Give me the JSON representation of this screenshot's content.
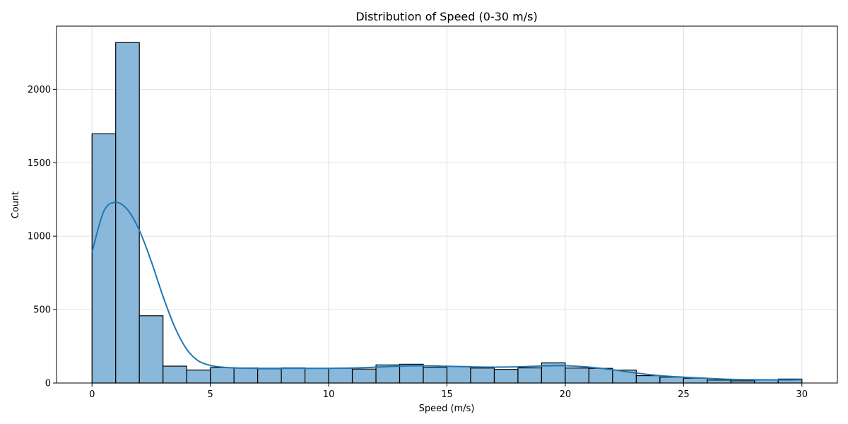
{
  "chart_data": {
    "type": "bar",
    "subtype": "histogram-with-kde",
    "title": "Distribution of Speed (0-30 m/s)",
    "xlabel": "Speed (m/s)",
    "ylabel": "Count",
    "xlim": [
      -1.5,
      31.5
    ],
    "ylim": [
      0,
      2430
    ],
    "x_ticks": [
      0,
      5,
      10,
      15,
      20,
      25,
      30
    ],
    "y_ticks": [
      0,
      500,
      1000,
      1500,
      2000
    ],
    "grid": true,
    "bin_edges": [
      0,
      1,
      2,
      3,
      4,
      5,
      6,
      7,
      8,
      9,
      10,
      11,
      12,
      13,
      14,
      15,
      16,
      17,
      18,
      19,
      20,
      21,
      22,
      23,
      24,
      25,
      26,
      27,
      28,
      29,
      30
    ],
    "values": [
      1697,
      2318,
      458,
      115,
      88,
      105,
      103,
      97,
      103,
      100,
      100,
      95,
      123,
      128,
      107,
      113,
      102,
      93,
      103,
      137,
      102,
      100,
      88,
      50,
      40,
      33,
      20,
      15,
      20,
      27
    ],
    "kde": {
      "x": [
        0,
        0.5,
        1,
        1.5,
        2,
        2.5,
        3,
        3.5,
        4,
        4.5,
        5,
        5.5,
        6,
        7,
        8,
        9,
        10,
        11,
        12,
        13,
        14,
        15,
        16,
        17,
        18,
        19,
        20,
        21,
        22,
        23,
        24,
        25,
        26,
        27,
        28,
        29,
        30
      ],
      "y": [
        890,
        1170,
        1230,
        1180,
        1040,
        830,
        590,
        380,
        230,
        150,
        120,
        108,
        103,
        100,
        100,
        100,
        100,
        102,
        108,
        115,
        117,
        114,
        110,
        108,
        110,
        116,
        118,
        108,
        90,
        68,
        50,
        40,
        32,
        25,
        22,
        21,
        22
      ]
    },
    "colors": {
      "bar_fill": "#8ab8da",
      "bar_edge": "#000000",
      "kde_line": "#1f77b4",
      "grid": "#e0e0e0"
    }
  }
}
